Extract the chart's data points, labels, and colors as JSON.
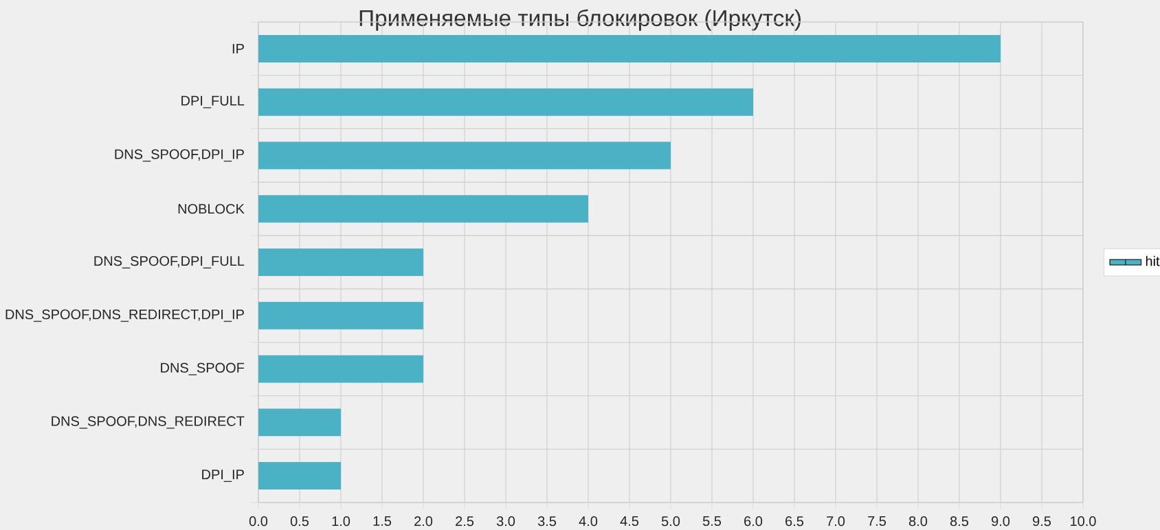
{
  "chart_data": {
    "type": "bar",
    "orientation": "horizontal",
    "title": "Применяемые типы блокировок (Иркутск)",
    "categories": [
      "IP",
      "DPI_FULL",
      "DNS_SPOOF,DPI_IP",
      "NOBLOCK",
      "DNS_SPOOF,DPI_FULL",
      "DNS_SPOOF,DNS_REDIRECT,DPI_IP",
      "DNS_SPOOF",
      "DNS_SPOOF,DNS_REDIRECT",
      "DPI_IP"
    ],
    "series": [
      {
        "name": "hit",
        "color": "#4bb2c5",
        "values": [
          9,
          6,
          5,
          4,
          2,
          2,
          2,
          1,
          1
        ]
      }
    ],
    "xlim": [
      0,
      10
    ],
    "xticks": [
      {
        "value": 0,
        "label": "0.0"
      },
      {
        "value": 0.5,
        "label": "0.5"
      },
      {
        "value": 1,
        "label": "1.0"
      },
      {
        "value": 1.5,
        "label": "1.5"
      },
      {
        "value": 2,
        "label": "2.0"
      },
      {
        "value": 2.5,
        "label": "2.5"
      },
      {
        "value": 3,
        "label": "3.0"
      },
      {
        "value": 3.5,
        "label": "3.5"
      },
      {
        "value": 4,
        "label": "4.0"
      },
      {
        "value": 4.5,
        "label": "4.5"
      },
      {
        "value": 5,
        "label": "5.0"
      },
      {
        "value": 5.5,
        "label": "5.5"
      },
      {
        "value": 6,
        "label": "6.0"
      },
      {
        "value": 6.5,
        "label": "6.5"
      },
      {
        "value": 7,
        "label": "7.0"
      },
      {
        "value": 7.5,
        "label": "7.5"
      },
      {
        "value": 8,
        "label": "8.0"
      },
      {
        "value": 8.5,
        "label": "8.5"
      },
      {
        "value": 9,
        "label": "9.0"
      },
      {
        "value": 9.5,
        "label": "9.5"
      },
      {
        "value": 10,
        "label": "10.0"
      }
    ],
    "grid": true,
    "legend": "right"
  }
}
